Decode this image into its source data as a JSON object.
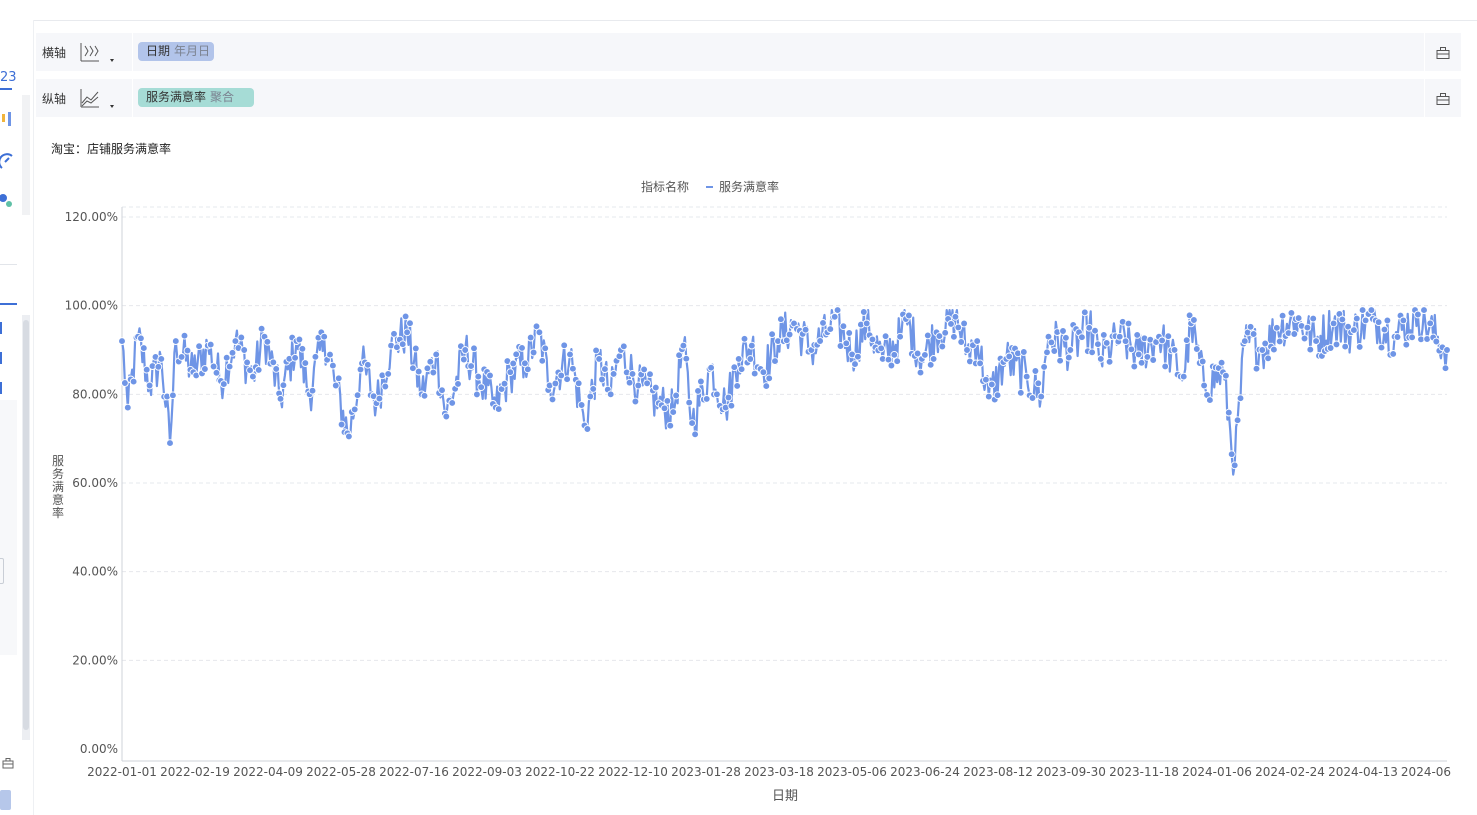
{
  "x_axis_row": {
    "label": "横轴",
    "field_name": "日期",
    "field_sub": "年月日"
  },
  "y_axis_row": {
    "label": "纵轴",
    "field_name": "服务满意率",
    "field_sub": "聚合"
  },
  "left_panel": {
    "partial_number": "23"
  },
  "colors": {
    "series": "#6f95e6",
    "pill_dimension": "#b2c4ea",
    "pill_measure": "#a6dcd6",
    "accent": "#3d6fd6"
  },
  "icons": {
    "x_axis_type": "line-chart-icon",
    "y_axis_type": "area-chart-icon",
    "row_tool": "toolbox-icon"
  },
  "chart_data": {
    "type": "line",
    "title": "淘宝：店铺服务满意率",
    "legend_title": "指标名称",
    "legend_position": "top-center",
    "series": [
      {
        "name": "服务满意率"
      }
    ],
    "xlabel": "日期",
    "ylabel": "服务满意率",
    "ylim": [
      0,
      120
    ],
    "y_ticks": [
      "0.00%",
      "20.00%",
      "40.00%",
      "60.00%",
      "80.00%",
      "100.00%",
      "120.00%"
    ],
    "x_ticks": [
      "2022-01-01",
      "2022-02-19",
      "2022-04-09",
      "2022-05-28",
      "2022-07-16",
      "2022-09-03",
      "2022-10-22",
      "2022-12-10",
      "2023-01-28",
      "2023-03-18",
      "2023-05-06",
      "2023-06-24",
      "2023-08-12",
      "2023-09-30",
      "2023-11-18",
      "2024-01-06",
      "2024-02-24",
      "2024-04-13",
      "2024-06"
    ],
    "grid": true,
    "markers": true,
    "x_range": [
      "2022-01-01",
      "2024-06-30"
    ],
    "sampled_points": [
      [
        "2022-01-01",
        92
      ],
      [
        "2022-01-05",
        77
      ],
      [
        "2022-01-12",
        93
      ],
      [
        "2022-01-20",
        82
      ],
      [
        "2022-01-28",
        88
      ],
      [
        "2022-02-03",
        69
      ],
      [
        "2022-02-07",
        92
      ],
      [
        "2022-02-19",
        85
      ],
      [
        "2022-03-01",
        91
      ],
      [
        "2022-03-10",
        83
      ],
      [
        "2022-03-20",
        92
      ],
      [
        "2022-04-01",
        84
      ],
      [
        "2022-04-09",
        93
      ],
      [
        "2022-04-20",
        79
      ],
      [
        "2022-05-01",
        92
      ],
      [
        "2022-05-10",
        80
      ],
      [
        "2022-05-20",
        93
      ],
      [
        "2022-05-28",
        82
      ],
      [
        "2022-06-06",
        70.5
      ],
      [
        "2022-06-15",
        87
      ],
      [
        "2022-06-25",
        78
      ],
      [
        "2022-07-05",
        91
      ],
      [
        "2022-07-16",
        94
      ],
      [
        "2022-07-26",
        80
      ],
      [
        "2022-08-05",
        89
      ],
      [
        "2022-08-12",
        75
      ],
      [
        "2022-08-25",
        90
      ],
      [
        "2022-09-03",
        84
      ],
      [
        "2022-09-15",
        77
      ],
      [
        "2022-09-25",
        85
      ],
      [
        "2022-10-05",
        87
      ],
      [
        "2022-10-15",
        94
      ],
      [
        "2022-10-22",
        82
      ],
      [
        "2022-11-05",
        89
      ],
      [
        "2022-11-15",
        73
      ],
      [
        "2022-11-25",
        88
      ],
      [
        "2022-12-03",
        80
      ],
      [
        "2022-12-10",
        90
      ],
      [
        "2022-12-22",
        82
      ],
      [
        "2023-01-05",
        78
      ],
      [
        "2023-01-15",
        76
      ],
      [
        "2023-01-22",
        91
      ],
      [
        "2023-01-28",
        73.5
      ],
      [
        "2023-02-10",
        86
      ],
      [
        "2023-02-20",
        77
      ],
      [
        "2023-03-01",
        88
      ],
      [
        "2023-03-10",
        91
      ],
      [
        "2023-03-18",
        85
      ],
      [
        "2023-03-28",
        92
      ],
      [
        "2023-04-08",
        96
      ],
      [
        "2023-04-20",
        90
      ],
      [
        "2023-05-01",
        94
      ],
      [
        "2023-05-06",
        97.5
      ],
      [
        "2023-05-18",
        89
      ],
      [
        "2023-05-28",
        96
      ],
      [
        "2023-06-08",
        88
      ],
      [
        "2023-06-20",
        93
      ],
      [
        "2023-06-24",
        97
      ],
      [
        "2023-07-05",
        88
      ],
      [
        "2023-07-15",
        94
      ],
      [
        "2023-07-28",
        97.5
      ],
      [
        "2023-08-05",
        90
      ],
      [
        "2023-08-12",
        92
      ],
      [
        "2023-08-20",
        79.5
      ],
      [
        "2023-09-01",
        88
      ],
      [
        "2023-09-15",
        84
      ],
      [
        "2023-09-25",
        79.5
      ],
      [
        "2023-09-30",
        93
      ],
      [
        "2023-10-15",
        90
      ],
      [
        "2023-10-28",
        95
      ],
      [
        "2023-11-05",
        88
      ],
      [
        "2023-11-18",
        93
      ],
      [
        "2023-12-01",
        89
      ],
      [
        "2023-12-15",
        93
      ],
      [
        "2024-01-01",
        84
      ],
      [
        "2024-01-06",
        96
      ],
      [
        "2024-01-15",
        82
      ],
      [
        "2024-01-28",
        85
      ],
      [
        "2024-02-05",
        64
      ],
      [
        "2024-02-12",
        92
      ],
      [
        "2024-02-24",
        90
      ],
      [
        "2024-03-05",
        95
      ],
      [
        "2024-03-18",
        97
      ],
      [
        "2024-04-01",
        92
      ],
      [
        "2024-04-13",
        96
      ],
      [
        "2024-04-25",
        94
      ],
      [
        "2024-05-10",
        97
      ],
      [
        "2024-05-25",
        93
      ],
      [
        "2024-06-10",
        98
      ],
      [
        "2024-06-30",
        90
      ]
    ]
  }
}
